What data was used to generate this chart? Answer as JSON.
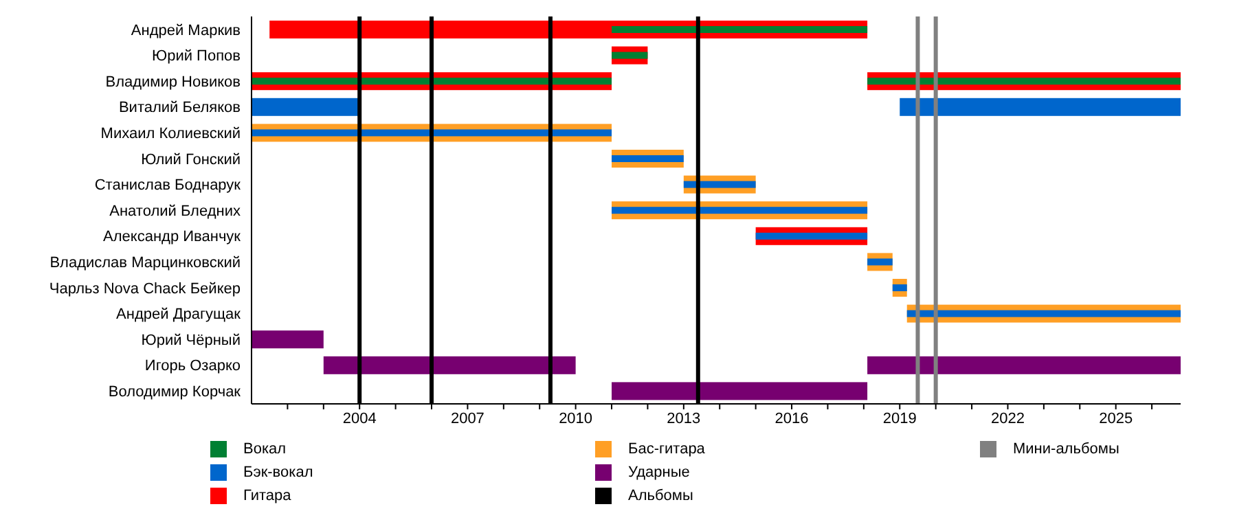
{
  "chart_data": {
    "type": "bar",
    "orientation": "horizontal",
    "categories": [
      "Андрей Маркив",
      "Юрий Попов",
      "Владимир Новиков",
      "Виталий Беляков",
      "Михаил Колиевский",
      "Юлий Гонский",
      "Станислав Боднарук",
      "Анатолий Бледних",
      "Александр Иванчук",
      "Владислав Марцинковский",
      "Чарльз Nova Chack Бейкер",
      "Андрей Драгущак",
      "Юрий Чёрный",
      "Игорь Озарко",
      "Володимир Корчак"
    ],
    "series": [
      {
        "name": "Вокал",
        "color": "#008033",
        "base": [
          2011,
          2011,
          2001,
          null,
          null,
          null,
          null,
          null,
          null,
          null,
          null,
          null,
          null,
          null,
          null
        ],
        "values": [
          7.1,
          1,
          10,
          null,
          null,
          null,
          null,
          null,
          null,
          null,
          null,
          null,
          null,
          null,
          null
        ]
      },
      {
        "color": "#008033",
        "base": [
          null,
          null,
          2018.1,
          null,
          null,
          null,
          null,
          null,
          null,
          null,
          null,
          null,
          null,
          null,
          null
        ],
        "values": [
          null,
          null,
          8.7,
          null,
          null,
          null,
          null,
          null,
          null,
          null,
          null,
          null,
          null,
          null,
          null
        ]
      },
      {
        "name": "Бэк-вокал",
        "color": "#0066cc",
        "base": [
          null,
          null,
          null,
          2001,
          null,
          null,
          null,
          null,
          null,
          null,
          null,
          null,
          null,
          null,
          null
        ],
        "values": [
          null,
          null,
          null,
          3,
          null,
          null,
          null,
          null,
          null,
          null,
          null,
          null,
          null,
          null,
          null
        ]
      },
      {
        "color": "#0066cc",
        "base": [
          null,
          null,
          null,
          2019,
          null,
          null,
          null,
          null,
          null,
          null,
          null,
          null,
          null,
          null,
          null
        ],
        "values": [
          null,
          null,
          null,
          7.8,
          null,
          null,
          null,
          null,
          null,
          null,
          null,
          null,
          null,
          null,
          null
        ]
      },
      {
        "color": "#0066cc",
        "base": [
          null,
          null,
          null,
          null,
          2001,
          2011,
          2013,
          2011,
          2015,
          2018.1,
          2018.8,
          2019.2,
          null,
          null,
          null
        ],
        "values": [
          null,
          null,
          null,
          null,
          10,
          2,
          2,
          7.1,
          3.1,
          0.7,
          0.4,
          7.6,
          null,
          null,
          null
        ]
      },
      {
        "name": "Гитара",
        "color": "#ff0000",
        "base": [
          2001.5,
          2011,
          2001,
          null,
          null,
          null,
          null,
          null,
          2015,
          null,
          null,
          null,
          null,
          null,
          null
        ],
        "values": [
          16.6,
          1,
          10,
          null,
          null,
          null,
          null,
          null,
          3.1,
          null,
          null,
          null,
          null,
          null,
          null
        ]
      },
      {
        "color": "#ff0000",
        "base": [
          null,
          null,
          2018.1,
          null,
          null,
          null,
          null,
          null,
          null,
          null,
          null,
          null,
          null,
          null,
          null
        ],
        "values": [
          null,
          null,
          8.7,
          null,
          null,
          null,
          null,
          null,
          null,
          null,
          null,
          null,
          null,
          null,
          null
        ]
      },
      {
        "name": "Бас-гитара",
        "color": "#ff9f25",
        "base": [
          null,
          null,
          null,
          null,
          2001,
          2011,
          2013,
          2011,
          null,
          2018.1,
          2018.8,
          2019.2,
          null,
          null,
          null
        ],
        "values": [
          null,
          null,
          null,
          null,
          10,
          2,
          2,
          7.1,
          null,
          0.7,
          0.4,
          7.6,
          null,
          null,
          null
        ]
      },
      {
        "name": "Ударные",
        "color": "#770070",
        "base": [
          null,
          null,
          null,
          null,
          null,
          null,
          null,
          null,
          null,
          null,
          null,
          null,
          2001,
          2003,
          2011
        ],
        "values": [
          null,
          null,
          null,
          null,
          null,
          null,
          null,
          null,
          null,
          null,
          null,
          null,
          2,
          7,
          7.1
        ]
      },
      {
        "color": "#770070",
        "base": [
          null,
          null,
          null,
          null,
          null,
          null,
          null,
          null,
          null,
          null,
          null,
          null,
          null,
          2018.1,
          null
        ],
        "values": [
          null,
          null,
          null,
          null,
          null,
          null,
          null,
          null,
          null,
          null,
          null,
          null,
          null,
          8.7,
          null
        ]
      }
    ],
    "xlim": [
      2001,
      2026.8
    ],
    "xticks": [
      {
        "value": 2002,
        "label": null
      },
      {
        "value": 2003,
        "label": null
      },
      2004,
      {
        "value": 2005,
        "label": null
      },
      {
        "value": 2006,
        "label": null
      },
      2007,
      {
        "value": 2008,
        "label": null
      },
      {
        "value": 2009,
        "label": null
      },
      2010,
      {
        "value": 2011,
        "label": null
      },
      {
        "value": 2012,
        "label": null
      },
      2013,
      {
        "value": 2014,
        "label": null
      },
      {
        "value": 2015,
        "label": null
      },
      2016,
      {
        "value": 2017,
        "label": null
      },
      {
        "value": 2018,
        "label": null
      },
      2019,
      {
        "value": 2020,
        "label": null
      },
      {
        "value": 2021,
        "label": null
      },
      2022,
      {
        "value": 2023,
        "label": null
      },
      {
        "value": 2024,
        "label": null
      },
      2025,
      {
        "value": 2026,
        "label": null
      }
    ],
    "ref_lines": [
      {
        "axis": "x",
        "value": 2004,
        "label": "Альбомы",
        "color": "#000000"
      },
      {
        "axis": "x",
        "value": 2006,
        "color": "#000000"
      },
      {
        "axis": "x",
        "value": 2009.3,
        "color": "#000000"
      },
      {
        "axis": "x",
        "value": 2013.4,
        "color": "#000000"
      },
      {
        "axis": "x",
        "value": 2019.5,
        "label": "Мини-альбомы",
        "color": "#808080"
      },
      {
        "axis": "x",
        "value": 2020,
        "color": "#808080"
      }
    ],
    "legend": "bottom",
    "grid": false
  }
}
